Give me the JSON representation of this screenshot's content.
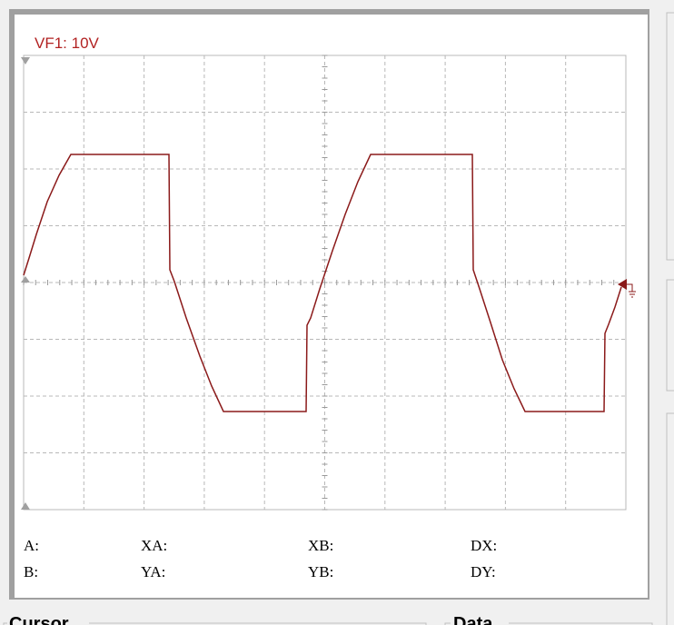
{
  "display": {
    "channel_label": "VF1: 10V"
  },
  "readouts": {
    "a": "A:",
    "b": "B:",
    "xa": "XA:",
    "ya": "YA:",
    "xb": "XB:",
    "yb": "YB:",
    "dx": "DX:",
    "dy": "DY:"
  },
  "groups": {
    "cursor": "Cursor",
    "data": "Data"
  }
}
